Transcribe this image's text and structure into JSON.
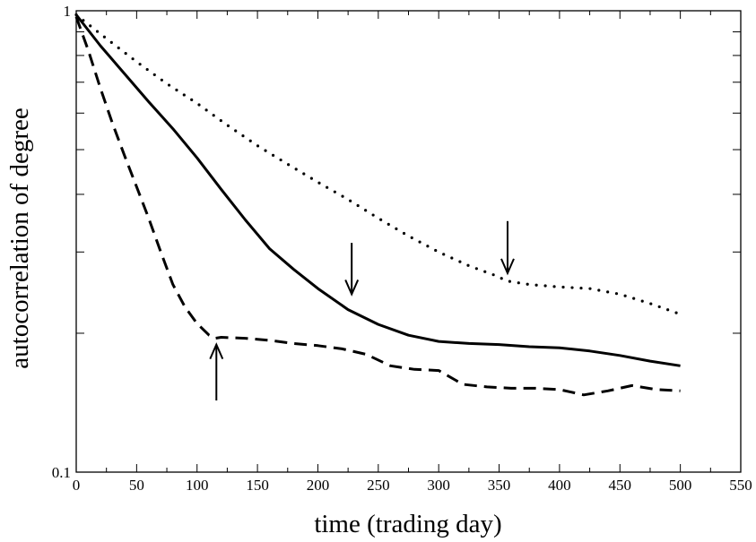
{
  "chart_data": {
    "type": "line",
    "title": "",
    "xlabel": "time (trading day)",
    "ylabel": "autocorrelation of degree",
    "xlim": [
      0,
      550
    ],
    "ylim": [
      0.1,
      1
    ],
    "yscale": "log",
    "grid": false,
    "x_ticks": [
      0,
      50,
      100,
      150,
      200,
      250,
      300,
      350,
      400,
      450,
      500,
      550
    ],
    "x_tick_labels": [
      "0",
      "50",
      "100",
      "150",
      "200",
      "250",
      "300",
      "350",
      "400",
      "450",
      "500",
      "550"
    ],
    "y_tick_labels": [
      {
        "value": 0.1,
        "label": "0.1"
      },
      {
        "value": 1,
        "label": "1"
      }
    ],
    "y_minor_ticks": [
      0.2,
      0.3,
      0.4,
      0.5,
      0.6,
      0.7,
      0.8,
      0.9
    ],
    "series": [
      {
        "style": "solid",
        "x": [
          0,
          20,
          40,
          60,
          80,
          100,
          120,
          140,
          160,
          180,
          200,
          225,
          250,
          275,
          300,
          325,
          350,
          375,
          400,
          425,
          450,
          475,
          500
        ],
        "y": [
          0.98,
          0.84,
          0.73,
          0.635,
          0.555,
          0.48,
          0.41,
          0.352,
          0.305,
          0.275,
          0.25,
          0.225,
          0.209,
          0.198,
          0.192,
          0.19,
          0.189,
          0.187,
          0.186,
          0.183,
          0.179,
          0.174,
          0.17
        ]
      },
      {
        "style": "dashed",
        "x": [
          0,
          10,
          20,
          30,
          40,
          50,
          60,
          70,
          80,
          90,
          100,
          110,
          115,
          120,
          140,
          160,
          180,
          200,
          220,
          240,
          260,
          280,
          300,
          320,
          340,
          360,
          380,
          400,
          420,
          440,
          460,
          480,
          500
        ],
        "y": [
          0.97,
          0.82,
          0.68,
          0.57,
          0.485,
          0.415,
          0.355,
          0.3,
          0.255,
          0.228,
          0.21,
          0.198,
          0.195,
          0.196,
          0.195,
          0.193,
          0.19,
          0.188,
          0.185,
          0.18,
          0.17,
          0.167,
          0.166,
          0.155,
          0.153,
          0.152,
          0.152,
          0.151,
          0.147,
          0.15,
          0.154,
          0.151,
          0.15
        ]
      },
      {
        "style": "dotted",
        "x": [
          0,
          25,
          50,
          75,
          100,
          125,
          150,
          175,
          200,
          225,
          250,
          275,
          300,
          325,
          350,
          355,
          375,
          400,
          425,
          450,
          475,
          500
        ],
        "y": [
          0.98,
          0.87,
          0.775,
          0.695,
          0.63,
          0.565,
          0.51,
          0.465,
          0.425,
          0.39,
          0.355,
          0.325,
          0.3,
          0.28,
          0.265,
          0.26,
          0.255,
          0.252,
          0.25,
          0.243,
          0.232,
          0.22
        ]
      }
    ],
    "annotations": [
      {
        "type": "arrow",
        "direction": "up",
        "x": 116,
        "y_tip": 0.189,
        "y_tail": 0.143
      },
      {
        "type": "arrow",
        "direction": "down",
        "x": 228,
        "y_tail": 0.314,
        "y_tip": 0.243
      },
      {
        "type": "arrow",
        "direction": "down",
        "x": 357,
        "y_tail": 0.35,
        "y_tip": 0.27
      }
    ]
  }
}
